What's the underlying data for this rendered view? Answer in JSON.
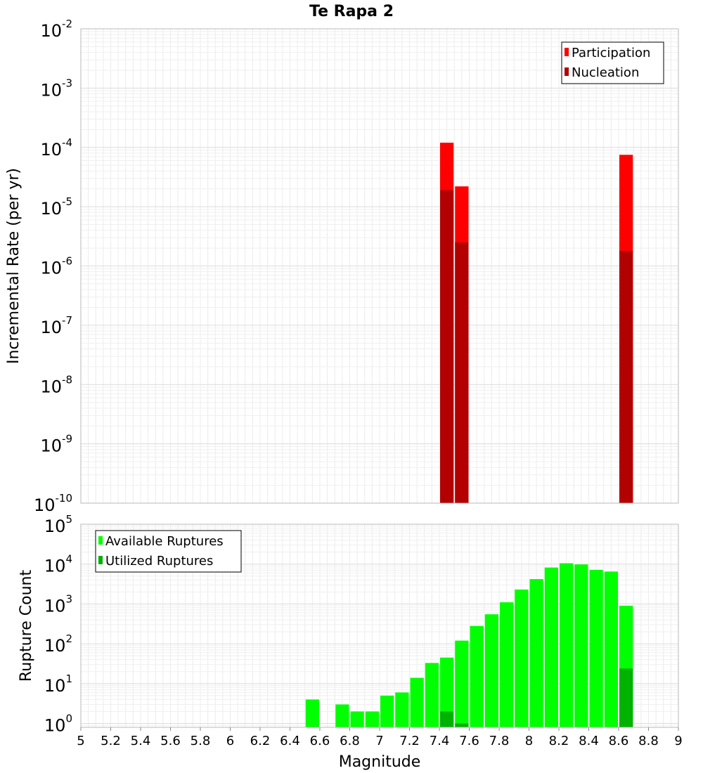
{
  "chart_data": [
    {
      "type": "bar",
      "title": "Te Rapa 2",
      "xlabel": "",
      "ylabel": "Incremental Rate (per yr)",
      "yscale": "log",
      "ylim": [
        1e-10,
        0.01
      ],
      "xlim": [
        5,
        9
      ],
      "bin_width": 0.1,
      "legend_position": "top-right",
      "series": [
        {
          "name": "Participation",
          "color": "#ff0000",
          "x": [
            7.45,
            7.55,
            8.65
          ],
          "values": [
            0.00012,
            2.2e-05,
            7.5e-05
          ]
        },
        {
          "name": "Nucleation",
          "color": "#b30000",
          "x": [
            7.45,
            7.55,
            8.65
          ],
          "values": [
            1.9e-05,
            2.5e-06,
            1.8e-06
          ]
        }
      ]
    },
    {
      "type": "bar",
      "title": "",
      "xlabel": "Magnitude",
      "ylabel": "Rupture Count",
      "yscale": "log",
      "ylim": [
        0.8,
        100000
      ],
      "xlim": [
        5,
        9
      ],
      "bin_width": 0.1,
      "legend_position": "top-left",
      "x_ticks": [
        "5",
        "5.2",
        "5.4",
        "5.6",
        "5.8",
        "6",
        "6.2",
        "6.4",
        "6.6",
        "6.8",
        "7",
        "7.2",
        "7.4",
        "7.6",
        "7.8",
        "8",
        "8.2",
        "8.4",
        "8.6",
        "8.8",
        "9"
      ],
      "series": [
        {
          "name": "Available Ruptures",
          "color": "#00ff00",
          "x": [
            6.55,
            6.75,
            6.85,
            6.95,
            7.05,
            7.15,
            7.25,
            7.35,
            7.45,
            7.55,
            7.65,
            7.75,
            7.85,
            7.95,
            8.05,
            8.15,
            8.25,
            8.35,
            8.45,
            8.55,
            8.65
          ],
          "values": [
            4,
            3,
            2,
            2,
            5,
            6,
            14,
            33,
            45,
            120,
            280,
            550,
            1100,
            2300,
            4200,
            8200,
            10500,
            9800,
            7200,
            6500,
            900
          ]
        },
        {
          "name": "Utilized Ruptures",
          "color": "#00b300",
          "x": [
            7.45,
            7.55,
            8.65
          ],
          "values": [
            2,
            1,
            24
          ]
        }
      ]
    }
  ]
}
